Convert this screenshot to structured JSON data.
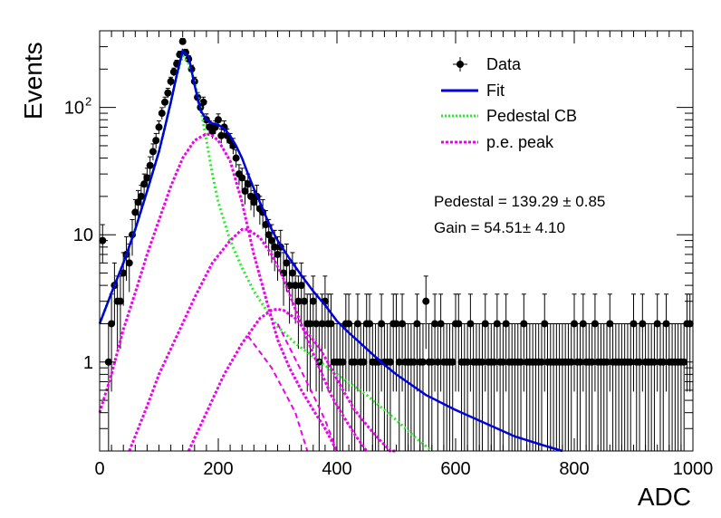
{
  "chart_data": {
    "type": "scatter",
    "xlabel": "ADC",
    "ylabel": "Events",
    "xlim": [
      0,
      1000
    ],
    "ylim": [
      0.2,
      400
    ],
    "yscale": "log",
    "grid": false,
    "legend_placement": "top-right",
    "x_ticks": [
      "0",
      "200",
      "400",
      "600",
      "800",
      "1000"
    ],
    "y_ticks": [
      {
        "value": 1,
        "base": "1",
        "exp": ""
      },
      {
        "value": 10,
        "base": "10",
        "exp": ""
      },
      {
        "value": 100,
        "base": "10",
        "exp": "2"
      }
    ],
    "legend": [
      "Data",
      "Fit",
      "Pedestal CB",
      "p.e. peak"
    ],
    "annotations": [
      "Pedestal = 139.29 ± 0.85",
      "Gain = 54.51± 4.10"
    ],
    "colors": {
      "data": "#000000",
      "fit": "#0000dd",
      "pedestal": "#22ee22",
      "pe_peak": "#ee00ee"
    },
    "data": {
      "name": "Data",
      "x": [
        5,
        15,
        20,
        25,
        30,
        35,
        40,
        45,
        50,
        55,
        60,
        65,
        70,
        75,
        80,
        85,
        90,
        95,
        100,
        105,
        110,
        115,
        120,
        125,
        130,
        135,
        140,
        145,
        150,
        155,
        160,
        165,
        170,
        175,
        180,
        185,
        190,
        195,
        200,
        205,
        210,
        215,
        220,
        225,
        230,
        235,
        240,
        245,
        250,
        255,
        260,
        265,
        270,
        275,
        280,
        285,
        290,
        295,
        300,
        305,
        310,
        315,
        320,
        325,
        330,
        335,
        340,
        345,
        350,
        355,
        360,
        365,
        370,
        375,
        380,
        385,
        390,
        395,
        400,
        405,
        410,
        415,
        420,
        425,
        430,
        435,
        440,
        445,
        450,
        455,
        460,
        465,
        470,
        475,
        480,
        485,
        490,
        495,
        500,
        505,
        510,
        515,
        520,
        525,
        530,
        535,
        540,
        545,
        550,
        555,
        560,
        565,
        570,
        575,
        580,
        585,
        590,
        595,
        600,
        605,
        610,
        615,
        620,
        625,
        630,
        635,
        640,
        645,
        650,
        655,
        660,
        665,
        670,
        675,
        680,
        685,
        690,
        695,
        700,
        705,
        710,
        715,
        720,
        725,
        730,
        735,
        740,
        745,
        750,
        755,
        760,
        765,
        770,
        775,
        780,
        785,
        790,
        795,
        800,
        805,
        810,
        815,
        820,
        825,
        830,
        835,
        840,
        845,
        850,
        855,
        860,
        865,
        870,
        875,
        880,
        885,
        890,
        895,
        900,
        905,
        910,
        915,
        920,
        925,
        930,
        935,
        940,
        945,
        950,
        955,
        960,
        965,
        970,
        975,
        980,
        985,
        990,
        995
      ],
      "y": [
        9,
        1,
        2,
        4,
        3,
        3,
        5,
        7,
        6,
        10,
        15,
        18,
        20,
        25,
        28,
        35,
        45,
        55,
        70,
        90,
        110,
        130,
        160,
        190,
        220,
        260,
        330,
        270,
        240,
        200,
        160,
        120,
        100,
        110,
        80,
        70,
        65,
        70,
        80,
        60,
        70,
        60,
        55,
        50,
        40,
        30,
        28,
        22,
        25,
        20,
        18,
        20,
        16,
        15,
        12,
        10,
        9,
        8,
        7,
        8,
        5,
        6,
        4,
        5,
        4,
        3,
        4,
        3,
        2,
        2,
        3,
        2,
        1,
        2,
        3,
        2,
        2,
        1,
        1,
        1,
        1,
        2,
        2,
        1,
        1,
        2,
        1,
        1,
        2,
        2,
        1,
        1,
        1,
        2,
        1,
        1,
        1,
        2,
        2,
        1,
        2,
        1,
        1,
        1,
        1,
        2,
        1,
        1,
        3,
        1,
        1,
        2,
        1,
        2,
        1,
        1,
        1,
        1,
        2,
        2,
        1,
        1,
        1,
        2,
        1,
        1,
        1,
        1,
        2,
        1,
        1,
        1,
        2,
        1,
        1,
        2,
        1,
        1,
        1,
        1,
        1,
        2,
        1,
        1,
        1,
        1,
        1,
        1,
        2,
        1,
        1,
        1,
        1,
        1,
        1,
        1,
        1,
        1,
        2,
        1,
        1,
        2,
        1,
        1,
        1,
        2,
        1,
        1,
        1,
        1,
        2,
        1,
        1,
        1,
        1,
        1,
        1,
        1,
        2,
        1,
        1,
        2,
        1,
        1,
        1,
        1,
        2,
        1,
        1,
        2,
        1,
        1,
        1,
        1,
        1,
        1,
        2,
        2
      ]
    },
    "fit": {
      "name": "Fit",
      "x": [
        0,
        20,
        40,
        60,
        80,
        100,
        110,
        120,
        130,
        140,
        150,
        160,
        170,
        180,
        190,
        200,
        210,
        220,
        230,
        240,
        250,
        260,
        270,
        280,
        290,
        300,
        320,
        340,
        360,
        380,
        400,
        420,
        440,
        460,
        480,
        500,
        550,
        600,
        650,
        700,
        750,
        780
      ],
      "y": [
        2,
        3.5,
        6,
        11,
        22,
        45,
        70,
        110,
        180,
        280,
        250,
        150,
        95,
        80,
        75,
        73,
        68,
        60,
        50,
        40,
        30,
        23,
        18,
        14,
        11,
        9,
        6.5,
        4.8,
        3.6,
        2.8,
        2.1,
        1.7,
        1.4,
        1.15,
        0.95,
        0.8,
        0.55,
        0.42,
        0.33,
        0.26,
        0.22,
        0.2
      ]
    },
    "pedestal_cb": {
      "name": "Pedestal CB",
      "x": [
        0,
        20,
        40,
        60,
        80,
        100,
        110,
        120,
        130,
        140,
        150,
        160,
        170,
        180,
        190,
        200,
        220,
        240,
        260,
        280,
        300,
        330,
        360,
        400,
        450,
        500,
        530,
        560
      ],
      "y": [
        2,
        3.5,
        6,
        11,
        22,
        45,
        70,
        110,
        180,
        255,
        220,
        160,
        100,
        55,
        30,
        18,
        9,
        5.5,
        3.6,
        2.6,
        1.9,
        1.4,
        1.1,
        0.8,
        0.55,
        0.35,
        0.26,
        0.2
      ]
    },
    "pe_peaks": [
      {
        "name": "p.e. peak",
        "x": [
          0,
          20,
          40,
          60,
          80,
          100,
          120,
          140,
          160,
          180,
          190,
          200,
          220,
          240,
          260,
          280,
          300,
          320,
          340,
          360,
          380,
          400
        ],
        "y": [
          0.4,
          0.8,
          1.8,
          3.5,
          7,
          13,
          24,
          40,
          55,
          62,
          60,
          55,
          38,
          18,
          7,
          3.2,
          1.5,
          0.9,
          0.6,
          0.42,
          0.3,
          0.2
        ]
      },
      {
        "name": "p.e. peak",
        "x": [
          50,
          80,
          100,
          130,
          160,
          190,
          220,
          240,
          250,
          270,
          290,
          310,
          330,
          350,
          370,
          390,
          410,
          430,
          450
        ],
        "y": [
          0.2,
          0.45,
          0.8,
          1.6,
          3.2,
          6,
          9,
          11,
          11,
          9.5,
          7,
          4.5,
          2.6,
          1.5,
          0.9,
          0.55,
          0.38,
          0.27,
          0.2
        ]
      },
      {
        "name": "p.e. peak",
        "x": [
          150,
          180,
          210,
          240,
          270,
          290,
          300,
          310,
          330,
          350,
          370,
          390,
          410,
          430,
          450,
          470,
          490,
          500
        ],
        "y": [
          0.2,
          0.4,
          0.8,
          1.4,
          2.2,
          2.55,
          2.6,
          2.55,
          2.2,
          1.7,
          1.3,
          0.9,
          0.6,
          0.42,
          0.32,
          0.25,
          0.2,
          0.18
        ]
      }
    ],
    "pe_tail_curves": [
      {
        "x": [
          300,
          320,
          340,
          360,
          380,
          400
        ],
        "y": [
          2.0,
          1.3,
          0.85,
          0.55,
          0.35,
          0.2
        ]
      },
      {
        "x": [
          250,
          270,
          290,
          310,
          330,
          350
        ],
        "y": [
          1.6,
          1.2,
          0.9,
          0.6,
          0.4,
          0.2
        ]
      }
    ]
  }
}
